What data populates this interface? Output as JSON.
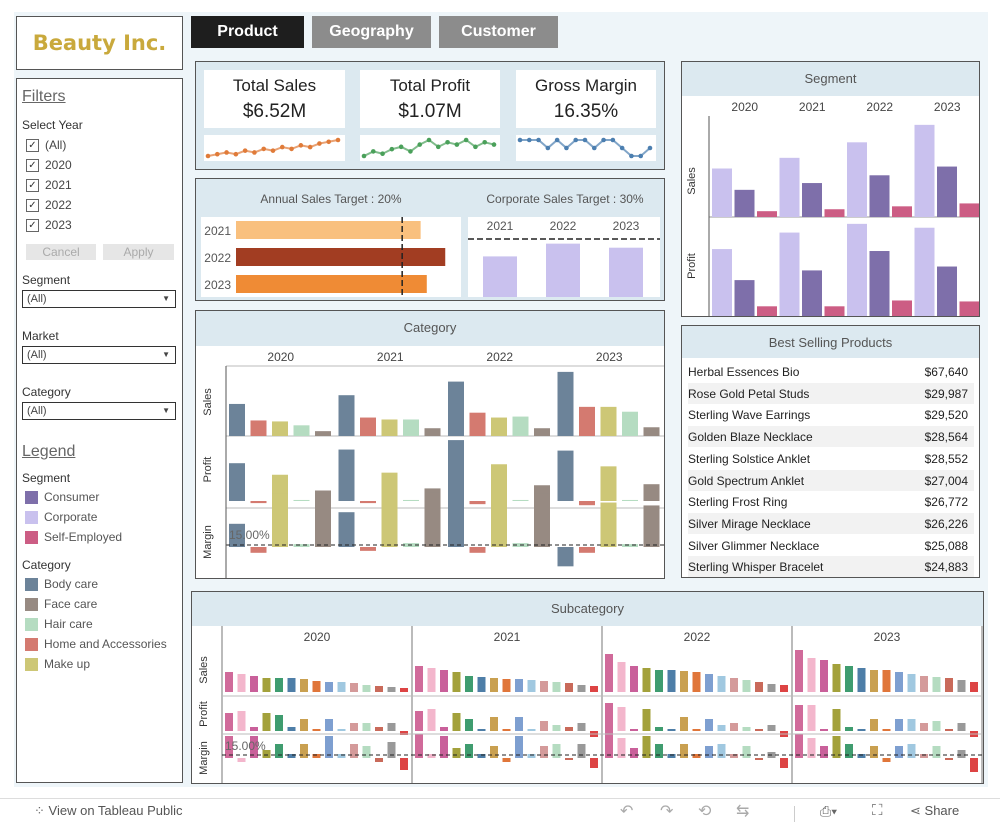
{
  "logo": "Beauty Inc.",
  "tabs": [
    {
      "label": "Product",
      "active": true
    },
    {
      "label": "Geography",
      "active": false
    },
    {
      "label": "Customer",
      "active": false
    }
  ],
  "filters": {
    "title": "Filters",
    "select_year_label": "Select Year",
    "year_options": [
      "(All)",
      "2020",
      "2021",
      "2022",
      "2023"
    ],
    "cancel": "Cancel",
    "apply": "Apply",
    "segment_label": "Segment",
    "segment_value": "(All)",
    "market_label": "Market",
    "market_value": "(All)",
    "category_label": "Category",
    "category_value": "(All)"
  },
  "legend": {
    "title": "Legend",
    "segment_label": "Segment",
    "segments": [
      {
        "name": "Consumer",
        "color": "#7e6faa"
      },
      {
        "name": "Corporate",
        "color": "#c9c1ee"
      },
      {
        "name": "Self-Employed",
        "color": "#cc5d84"
      }
    ],
    "category_label": "Category",
    "categories": [
      {
        "name": "Body care",
        "color": "#6c8399"
      },
      {
        "name": "Face care",
        "color": "#978a82"
      },
      {
        "name": "Hair care",
        "color": "#b5dcc1"
      },
      {
        "name": "Home and Accessories",
        "color": "#d47a70"
      },
      {
        "name": "Make up",
        "color": "#cdc776"
      }
    ]
  },
  "kpis": [
    {
      "title": "Total Sales",
      "value": "$6.52M"
    },
    {
      "title": "Total Profit",
      "value": "$1.07M"
    },
    {
      "title": "Gross Margin",
      "value": "16.35%"
    }
  ],
  "targets": {
    "annual_title": "Annual Sales Target : 20%",
    "corporate_title": "Corporate Sales Target : 30%",
    "years": [
      "2021",
      "2022",
      "2023"
    ]
  },
  "segment_panel": {
    "title": "Segment",
    "years": [
      "2020",
      "2021",
      "2022",
      "2023"
    ],
    "sales_label": "Sales",
    "profit_label": "Profit"
  },
  "category_panel": {
    "title": "Category",
    "years": [
      "2020",
      "2021",
      "2022",
      "2023"
    ],
    "row_labels": [
      "Sales",
      "Profit",
      "Margin"
    ],
    "ref_label": "15.00%"
  },
  "best_selling": {
    "title": "Best Selling Products",
    "items": [
      {
        "name": "Herbal Essences Bio",
        "value": "$67,640"
      },
      {
        "name": "Rose Gold Petal Studs",
        "value": "$29,987"
      },
      {
        "name": "Sterling Wave Earrings",
        "value": "$29,520"
      },
      {
        "name": "Golden Blaze Necklace",
        "value": "$28,564"
      },
      {
        "name": "Sterling Solstice Anklet",
        "value": "$28,552"
      },
      {
        "name": "Gold Spectrum Anklet",
        "value": "$27,004"
      },
      {
        "name": "Sterling Frost Ring",
        "value": "$26,772"
      },
      {
        "name": "Silver Mirage Necklace",
        "value": "$26,226"
      },
      {
        "name": "Silver Glimmer Necklace",
        "value": "$25,088"
      },
      {
        "name": "Sterling Whisper Bracelet",
        "value": "$24,883"
      }
    ]
  },
  "subcategory_panel": {
    "title": "Subcategory",
    "years": [
      "2020",
      "2021",
      "2022",
      "2023"
    ],
    "row_labels": [
      "Sales",
      "Profit",
      "Margin"
    ],
    "ref_label": "15.00%"
  },
  "toolbar": {
    "view_label": "View on Tableau Public",
    "share_label": "Share"
  },
  "chart_data": [
    {
      "type": "line",
      "name": "Total Sales sparkline",
      "color": "#e07b39",
      "values": [
        4,
        5,
        6,
        5,
        7,
        6,
        8,
        7,
        9,
        8,
        10,
        9,
        11,
        12,
        13
      ]
    },
    {
      "type": "line",
      "name": "Total Profit sparkline",
      "color": "#4aa05a",
      "values": [
        5,
        7,
        6,
        8,
        9,
        7,
        10,
        12,
        9,
        11,
        10,
        12,
        9,
        11,
        10
      ]
    },
    {
      "type": "line",
      "name": "Gross Margin sparkline",
      "color": "#4c7fb0",
      "values": [
        12,
        12,
        12,
        11,
        12,
        11,
        12,
        12,
        11,
        12,
        12,
        11,
        10,
        10,
        11
      ]
    },
    {
      "type": "bar",
      "name": "Annual Sales Target",
      "categories": [
        "2021",
        "2022",
        "2023"
      ],
      "values": [
        0.6,
        0.68,
        0.62
      ],
      "target": 0.54,
      "colors": [
        "#f9c07e",
        "#a23d22",
        "#ef8b35"
      ]
    },
    {
      "type": "bar",
      "name": "Corporate Sales Target",
      "categories": [
        "2021",
        "2022",
        "2023"
      ],
      "values": [
        0.7,
        0.92,
        0.85
      ],
      "target": 1.0,
      "color": "#c9c1ee"
    },
    {
      "type": "bar",
      "name": "Segment",
      "categories": [
        "2020",
        "2021",
        "2022",
        "2023"
      ],
      "series": [
        {
          "name": "Consumer",
          "sales": [
            28,
            35,
            43,
            52
          ],
          "profit": [
            37,
            47,
            67,
            51
          ]
        },
        {
          "name": "Corporate",
          "sales": [
            50,
            61,
            77,
            95
          ],
          "profit": [
            69,
            86,
            95,
            91
          ]
        },
        {
          "name": "Self-Employed",
          "sales": [
            6,
            8,
            11,
            14
          ],
          "profit": [
            10,
            10,
            16,
            15
          ]
        }
      ]
    },
    {
      "type": "bar",
      "name": "Category",
      "categories": [
        "2020",
        "2021",
        "2022",
        "2023"
      ],
      "series": [
        {
          "name": "Body care",
          "sales": [
            33,
            42,
            56,
            66
          ],
          "profit": [
            36,
            49,
            58,
            48
          ],
          "margin": [
            24,
            36,
            60,
            -20
          ]
        },
        {
          "name": "Home and Accessories",
          "sales": [
            16,
            19,
            24,
            30
          ],
          "profit": [
            -2,
            -2,
            -3,
            -4
          ],
          "margin": [
            -6,
            -4,
            -6,
            -6
          ]
        },
        {
          "name": "Make up",
          "sales": [
            15,
            17,
            19,
            30
          ],
          "profit": [
            25,
            27,
            35,
            33
          ],
          "margin": [
            55,
            50,
            53,
            46
          ]
        },
        {
          "name": "Hair care",
          "sales": [
            11,
            17,
            20,
            25
          ],
          "profit": [
            1,
            1,
            1,
            1
          ],
          "margin": [
            3,
            4,
            4,
            3
          ]
        },
        {
          "name": "Face care",
          "sales": [
            5,
            8,
            8,
            9
          ],
          "profit": [
            10,
            12,
            15,
            16
          ],
          "margin": [
            55,
            56,
            55,
            43
          ]
        }
      ]
    }
  ]
}
